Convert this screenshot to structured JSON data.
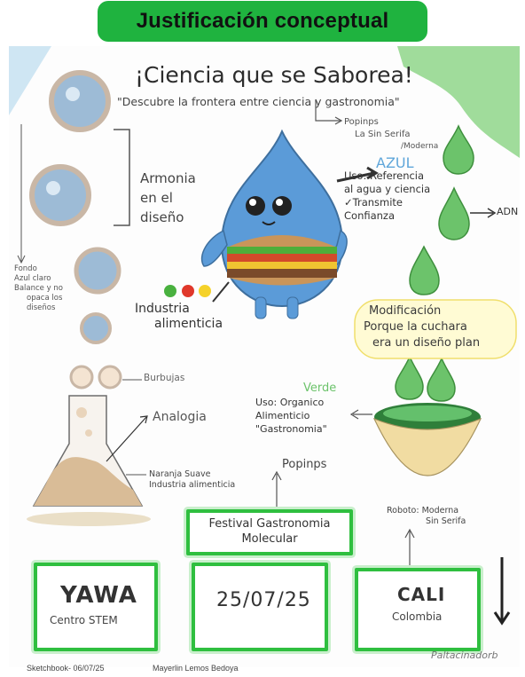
{
  "header": {
    "title": "Justificación conceptual"
  },
  "headline": "¡Ciencia que se Saborea!",
  "subline": "\"Descubre la frontera entre ciencia y gastronomia\"",
  "font_note": {
    "name": "Popinps",
    "line1": "La Sin Serifa",
    "line2": "/Moderna"
  },
  "harmony": {
    "l1": "Armonia",
    "l2": "en el",
    "l3": "diseño"
  },
  "blue_section": {
    "label": "AZUL",
    "l1": "Uso: Referencia",
    "l2": "al agua y ciencia",
    "l3": "✓Transmite",
    "l4": "Confianza"
  },
  "adn": "ADN",
  "left_note": {
    "l1": "Fondo",
    "l2": "Azul claro",
    "l3": "Balance y no",
    "l4": "opaca los",
    "l5": "diseños"
  },
  "industry": {
    "l1": "Industria",
    "l2": "alimenticia"
  },
  "modification": {
    "l1": "Modificación",
    "l2": "Porque la cuchara",
    "l3": "era un diseño plan"
  },
  "bubbles": "Burbujas",
  "analogy": "Analogia",
  "orange": {
    "l1": "Naranja Suave",
    "l2": "Industria alimenticia"
  },
  "green_section": {
    "label": "Verde",
    "l1": "Uso: Organico",
    "l2": "Alimenticio",
    "l3": "\"Gastronomia\""
  },
  "popinps2": "Popinps",
  "roboto": {
    "l1": "Roboto: Moderna",
    "l2": "Sin Serifa"
  },
  "festival": {
    "l1": "Festival Gastronomia",
    "l2": "Molecular"
  },
  "boxes": {
    "yawa": "YAWA",
    "yawa_sub": "Centro STEM",
    "date": "25/07/25",
    "city": "CALI",
    "country": "Colombia"
  },
  "signature": "Paltacinadorb",
  "footer": {
    "sketchbook": "Sketchbook- 06/07/25",
    "author": "Mayerlin Lemos Bedoya"
  },
  "colors": {
    "brand_green": "#1fb33f",
    "drop_blue": "#5b9bd8",
    "light_blue": "#a9c7df"
  }
}
